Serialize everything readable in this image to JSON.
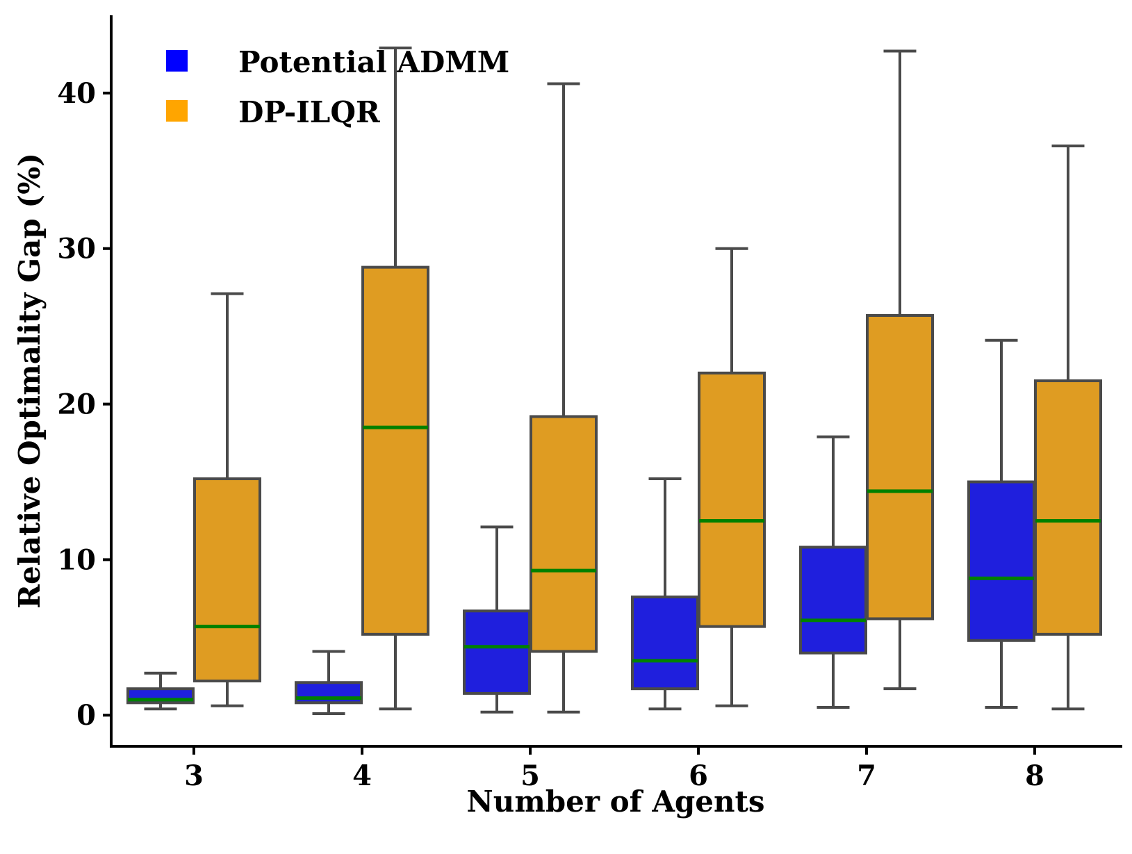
{
  "chart_data": {
    "type": "box",
    "title": "",
    "xlabel": "Number of Agents",
    "ylabel": "Relative Optimality Gap (%)",
    "ylim": [
      -2.0,
      45.0
    ],
    "yticks": [
      0,
      10,
      20,
      30,
      40
    ],
    "categories": [
      "3",
      "4",
      "5",
      "6",
      "7",
      "8"
    ],
    "grid": false,
    "legend_position": "top-left",
    "median_color": "#008000",
    "edge_color": "#4a4a4a",
    "series": [
      {
        "name": "Potential ADMM",
        "color": "#1f1fdd",
        "legend_color": "#0000ff",
        "boxes": [
          {
            "whisker_low": 0.4,
            "q1": 0.8,
            "median": 1.0,
            "q3": 1.7,
            "whisker_high": 2.7
          },
          {
            "whisker_low": 0.1,
            "q1": 0.8,
            "median": 1.1,
            "q3": 2.1,
            "whisker_high": 4.1
          },
          {
            "whisker_low": 0.2,
            "q1": 1.4,
            "median": 4.4,
            "q3": 6.7,
            "whisker_high": 12.1
          },
          {
            "whisker_low": 0.4,
            "q1": 1.7,
            "median": 3.5,
            "q3": 7.6,
            "whisker_high": 15.2
          },
          {
            "whisker_low": 0.5,
            "q1": 4.0,
            "median": 6.1,
            "q3": 10.8,
            "whisker_high": 17.9
          },
          {
            "whisker_low": 0.5,
            "q1": 4.8,
            "median": 8.8,
            "q3": 15.0,
            "whisker_high": 24.1
          }
        ]
      },
      {
        "name": "DP-ILQR",
        "color": "#df9c22",
        "legend_color": "#ffa500",
        "boxes": [
          {
            "whisker_low": 0.6,
            "q1": 2.2,
            "median": 5.7,
            "q3": 15.2,
            "whisker_high": 27.1
          },
          {
            "whisker_low": 0.4,
            "q1": 5.2,
            "median": 18.5,
            "q3": 28.8,
            "whisker_high": 42.9
          },
          {
            "whisker_low": 0.2,
            "q1": 4.1,
            "median": 9.3,
            "q3": 19.2,
            "whisker_high": 40.6
          },
          {
            "whisker_low": 0.6,
            "q1": 5.7,
            "median": 12.5,
            "q3": 22.0,
            "whisker_high": 30.0
          },
          {
            "whisker_low": 1.7,
            "q1": 6.2,
            "median": 14.4,
            "q3": 25.7,
            "whisker_high": 42.7
          },
          {
            "whisker_low": 0.4,
            "q1": 5.2,
            "median": 12.5,
            "q3": 21.5,
            "whisker_high": 36.6
          }
        ]
      }
    ]
  }
}
